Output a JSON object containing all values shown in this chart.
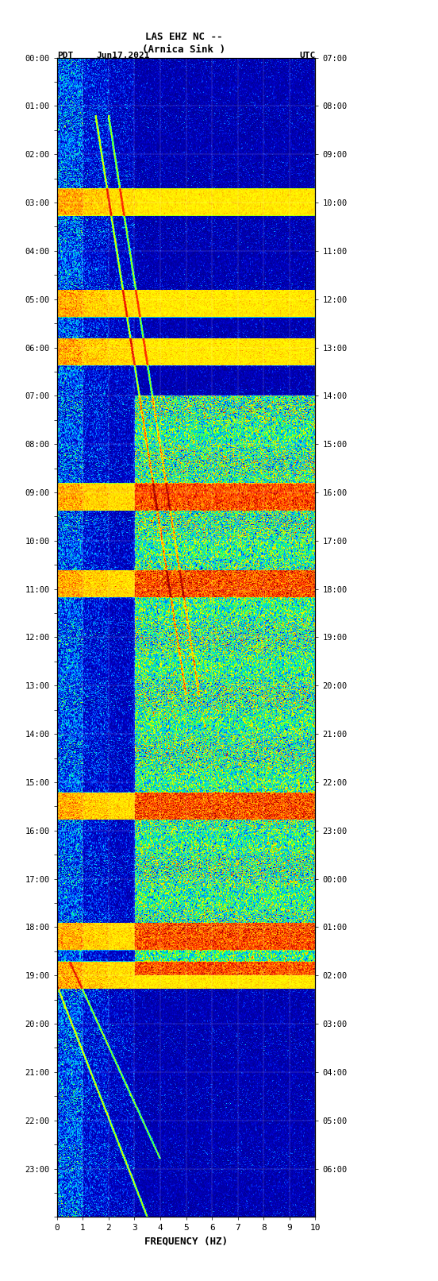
{
  "title_line1": "LAS EHZ NC --",
  "title_line2": "(Arnica Sink )",
  "date": "Jun17,2021",
  "left_label": "PDT",
  "right_label": "UTC",
  "xlabel": "FREQUENCY (HZ)",
  "freq_min": 0,
  "freq_max": 10,
  "freq_ticks": [
    0,
    1,
    2,
    3,
    4,
    5,
    6,
    7,
    8,
    9,
    10
  ],
  "left_time_labels": [
    "00:00",
    "01:00",
    "02:00",
    "03:00",
    "04:00",
    "05:00",
    "06:00",
    "07:00",
    "08:00",
    "09:00",
    "10:00",
    "11:00",
    "12:00",
    "13:00",
    "14:00",
    "15:00",
    "16:00",
    "17:00",
    "18:00",
    "19:00",
    "20:00",
    "21:00",
    "22:00",
    "23:00"
  ],
  "right_time_labels": [
    "07:00",
    "08:00",
    "09:00",
    "10:00",
    "11:00",
    "12:00",
    "13:00",
    "14:00",
    "15:00",
    "16:00",
    "17:00",
    "18:00",
    "19:00",
    "20:00",
    "21:00",
    "22:00",
    "23:00",
    "00:00",
    "01:00",
    "02:00",
    "03:00",
    "04:00",
    "05:00",
    "06:00"
  ],
  "num_time_steps": 1440,
  "num_freq_steps": 500,
  "background_color": "#ffffff",
  "usgs_green": "#4a7729",
  "colormap_colors": [
    "#00008b",
    "#0000ff",
    "#0080ff",
    "#00ffff",
    "#00ff80",
    "#80ff00",
    "#ffff00",
    "#ff8000",
    "#ff0000",
    "#8b0000"
  ],
  "figsize": [
    5.52,
    16.13
  ],
  "dpi": 100
}
